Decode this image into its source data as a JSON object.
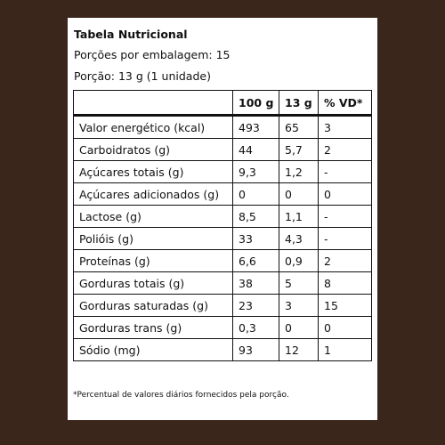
{
  "title": "Tabela Nutricional",
  "servings_per_package": "Porções por embalagem: 15",
  "serving_size": "Porção: 13 g (1 unidade)",
  "table": {
    "headers": [
      "",
      "100 g",
      "13 g",
      "% VD*"
    ],
    "rows": [
      [
        "Valor energético (kcal)",
        "493",
        "65",
        "3"
      ],
      [
        "Carboidratos (g)",
        "44",
        "5,7",
        "2"
      ],
      [
        "Açúcares totais (g)",
        "9,3",
        "1,2",
        "-"
      ],
      [
        "Açúcares adicionados (g)",
        "0",
        "0",
        "0"
      ],
      [
        "Lactose (g)",
        "8,5",
        "1,1",
        "-"
      ],
      [
        "Polióis (g)",
        "33",
        "4,3",
        "-"
      ],
      [
        "Proteínas (g)",
        "6,6",
        "0,9",
        "2"
      ],
      [
        "Gorduras totais (g)",
        "38",
        "5",
        "8"
      ],
      [
        "Gorduras saturadas (g)",
        "23",
        "3",
        "15"
      ],
      [
        "Gorduras trans (g)",
        "0,3",
        "0",
        "0"
      ],
      [
        "Sódio (mg)",
        "93",
        "12",
        "1"
      ]
    ]
  },
  "footnote": "*Percentual de valores diários fornecidos pela porção."
}
